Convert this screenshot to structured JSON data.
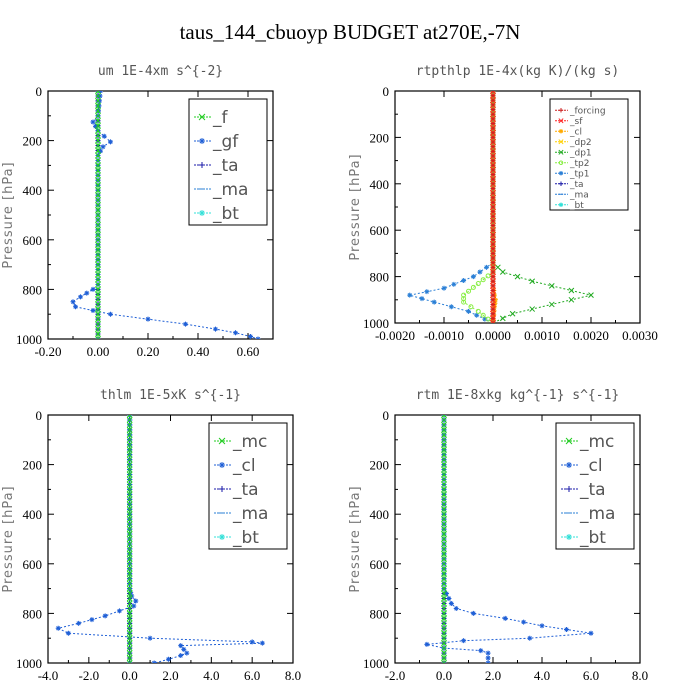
{
  "title": "taus_144_cbuoyp  BUDGET at270E,-7N",
  "chart_data": [
    {
      "type": "line",
      "title": "um   1E-4xm s^{-2}",
      "ylabel": "Pressure [hPa]",
      "xlim": [
        -0.2,
        0.7
      ],
      "ylim": [
        1000,
        0
      ],
      "xticks": [
        "-0.20",
        "0.00",
        "0.20",
        "0.40",
        "0.60"
      ],
      "xtick_values": [
        -0.2,
        0,
        0.2,
        0.4,
        0.6
      ],
      "yticks": [
        "0",
        "200",
        "400",
        "600",
        "800",
        "1000"
      ],
      "ytick_values": [
        0,
        200,
        400,
        600,
        800,
        1000
      ],
      "legend_loc": "top-right",
      "legend_size": "large",
      "series": [
        {
          "name": "_f",
          "color": "#22cc22",
          "marker": "x",
          "x": [
            0,
            0
          ],
          "y": [
            0,
            1000
          ]
        },
        {
          "name": "_gf",
          "color": "#1f5fd6",
          "marker": "*",
          "x": [
            0.01,
            0.0,
            -0.02,
            0.0,
            0.05,
            0.02,
            0.0,
            0.0,
            0.0,
            0.0,
            0.0,
            0.0,
            0.0,
            0.0,
            0.0,
            0.0,
            -0.02,
            -0.07,
            -0.1,
            -0.09,
            0.05,
            0.2,
            0.35,
            0.47,
            0.55,
            0.61,
            0.64
          ],
          "y": [
            0,
            100,
            125,
            160,
            205,
            225,
            260,
            300,
            340,
            400,
            500,
            600,
            700,
            740,
            760,
            780,
            800,
            830,
            850,
            870,
            900,
            920,
            940,
            960,
            975,
            990,
            1000
          ]
        },
        {
          "name": "_ta",
          "color": "#1a1aa8",
          "marker": "+",
          "x": [
            0,
            0
          ],
          "y": [
            0,
            1000
          ]
        },
        {
          "name": "_ma",
          "color": "#2a7fd6",
          "marker": "-",
          "x": [
            0,
            0
          ],
          "y": [
            0,
            1000
          ]
        },
        {
          "name": "_bt",
          "color": "#33e0d8",
          "marker": "*",
          "x": [
            0,
            0
          ],
          "y": [
            0,
            1000
          ]
        }
      ]
    },
    {
      "type": "line",
      "title": "rtpthlp   1E-4x(kg K)/(kg s)",
      "ylabel": "Pressure [hPa]",
      "xlim": [
        -0.002,
        0.003
      ],
      "ylim": [
        1000,
        0
      ],
      "xticks": [
        "-0.0020",
        "-0.0010",
        "0.0000",
        "0.0010",
        "0.0020",
        "0.0030"
      ],
      "xtick_values": [
        -0.002,
        -0.001,
        0,
        0.001,
        0.002,
        0.003
      ],
      "yticks": [
        "0",
        "200",
        "400",
        "600",
        "800",
        "1000"
      ],
      "ytick_values": [
        0,
        200,
        400,
        600,
        800,
        1000
      ],
      "legend_loc": "top-right",
      "legend_size": "small",
      "series": [
        {
          "name": "_forcing",
          "color": "#cc2222",
          "marker": "+",
          "x": [
            0,
            0
          ],
          "y": [
            0,
            1000
          ]
        },
        {
          "name": "_sf",
          "color": "#ff2020",
          "marker": "x",
          "x": [
            0,
            0
          ],
          "y": [
            0,
            1000
          ]
        },
        {
          "name": "_cl",
          "color": "#ffaa00",
          "marker": "*",
          "x": [
            0,
            0,
            3e-05,
            5e-05,
            3e-05,
            0
          ],
          "y": [
            0,
            840,
            880,
            900,
            930,
            1000
          ]
        },
        {
          "name": "_dp2",
          "color": "#ffd000",
          "marker": "x",
          "x": [
            0,
            0
          ],
          "y": [
            0,
            1000
          ]
        },
        {
          "name": "_dp1",
          "color": "#22aa22",
          "marker": "x",
          "x": [
            0,
            0,
            0.0002,
            0.0008,
            0.0016,
            0.002,
            0.0012,
            0.0004,
            0
          ],
          "y": [
            0,
            740,
            780,
            820,
            860,
            880,
            920,
            960,
            1000
          ]
        },
        {
          "name": "_tp2",
          "color": "#88ee44",
          "marker": "o",
          "x": [
            0,
            0,
            -0.0003,
            -0.0006,
            -0.0006,
            -0.0003,
            0
          ],
          "y": [
            0,
            780,
            830,
            880,
            910,
            950,
            1000
          ]
        },
        {
          "name": "_tp1",
          "color": "#2a7fd6",
          "marker": "*",
          "x": [
            0,
            0,
            -0.0004,
            -0.001,
            -0.0017,
            -0.0012,
            -0.0005,
            0
          ],
          "y": [
            0,
            740,
            800,
            850,
            880,
            910,
            950,
            1000
          ]
        },
        {
          "name": "_ta",
          "color": "#1a1aa8",
          "marker": "+",
          "x": [
            0,
            0
          ],
          "y": [
            0,
            1000
          ]
        },
        {
          "name": "_ma",
          "color": "#2a7fd6",
          "marker": "-",
          "x": [
            0,
            0
          ],
          "y": [
            0,
            1000
          ]
        },
        {
          "name": "_bt",
          "color": "#33e0d8",
          "marker": "*",
          "x": [
            0,
            0
          ],
          "y": [
            0,
            1000
          ]
        }
      ]
    },
    {
      "type": "line",
      "title": "thlm   1E-5xK s^{-1}",
      "ylabel": "Pressure [hPa]",
      "xlim": [
        -4,
        8
      ],
      "ylim": [
        1000,
        0
      ],
      "xticks": [
        "-4.0",
        "-2.0",
        "0.0",
        "2.0",
        "4.0",
        "6.0",
        "8.0"
      ],
      "xtick_values": [
        -4,
        -2,
        0,
        2,
        4,
        6,
        8
      ],
      "yticks": [
        "0",
        "200",
        "400",
        "600",
        "800",
        "1000"
      ],
      "ytick_values": [
        0,
        200,
        400,
        600,
        800,
        1000
      ],
      "legend_loc": "top-right",
      "legend_size": "large",
      "series": [
        {
          "name": "_mc",
          "color": "#22cc22",
          "marker": "x",
          "x": [
            0,
            0
          ],
          "y": [
            0,
            1000
          ]
        },
        {
          "name": "_cl",
          "color": "#1f5fd6",
          "marker": "*",
          "x": [
            0,
            0,
            0.1,
            0.3,
            0.2,
            -0.5,
            -1.2,
            -2.5,
            -3.5,
            -3.0,
            1.0,
            6.0,
            6.5,
            2.5,
            2.8,
            2.5,
            1.9,
            1.2
          ],
          "y": [
            0,
            700,
            730,
            750,
            770,
            790,
            810,
            840,
            860,
            880,
            900,
            915,
            920,
            930,
            960,
            970,
            985,
            1000
          ]
        },
        {
          "name": "_ta",
          "color": "#1a1aa8",
          "marker": "+",
          "x": [
            0,
            0
          ],
          "y": [
            0,
            1000
          ]
        },
        {
          "name": "_ma",
          "color": "#2a7fd6",
          "marker": "-",
          "x": [
            0,
            0
          ],
          "y": [
            0,
            1000
          ]
        },
        {
          "name": "_bt",
          "color": "#33e0d8",
          "marker": "*",
          "x": [
            0,
            0
          ],
          "y": [
            0,
            1000
          ]
        }
      ]
    },
    {
      "type": "line",
      "title": "rtm   1E-8xkg kg^{-1} s^{-1}",
      "ylabel": "Pressure [hPa]",
      "xlim": [
        -2,
        8
      ],
      "ylim": [
        1000,
        0
      ],
      "xticks": [
        "-2.0",
        "0.0",
        "2.0",
        "4.0",
        "6.0",
        "8.0"
      ],
      "xtick_values": [
        -2,
        0,
        2,
        4,
        6,
        8
      ],
      "yticks": [
        "0",
        "200",
        "400",
        "600",
        "800",
        "1000"
      ],
      "ytick_values": [
        0,
        200,
        400,
        600,
        800,
        1000
      ],
      "legend_loc": "top-right",
      "legend_size": "large",
      "series": [
        {
          "name": "_mc",
          "color": "#22cc22",
          "marker": "x",
          "x": [
            0,
            0
          ],
          "y": [
            0,
            1000
          ]
        },
        {
          "name": "_cl",
          "color": "#1f5fd6",
          "marker": "*",
          "x": [
            0,
            0,
            0.2,
            0.3,
            0.5,
            1.2,
            2.5,
            4.0,
            6.0,
            3.5,
            0.8,
            -0.7,
            0.0,
            1.5,
            1.8,
            1.8,
            1.8
          ],
          "y": [
            0,
            700,
            740,
            760,
            780,
            800,
            820,
            850,
            880,
            900,
            910,
            925,
            940,
            950,
            960,
            980,
            1000
          ]
        },
        {
          "name": "_ta",
          "color": "#1a1aa8",
          "marker": "+",
          "x": [
            0,
            0
          ],
          "y": [
            0,
            1000
          ]
        },
        {
          "name": "_ma",
          "color": "#2a7fd6",
          "marker": "-",
          "x": [
            0,
            0
          ],
          "y": [
            0,
            1000
          ]
        },
        {
          "name": "_bt",
          "color": "#33e0d8",
          "marker": "*",
          "x": [
            0,
            0
          ],
          "y": [
            0,
            1000
          ]
        }
      ]
    }
  ]
}
